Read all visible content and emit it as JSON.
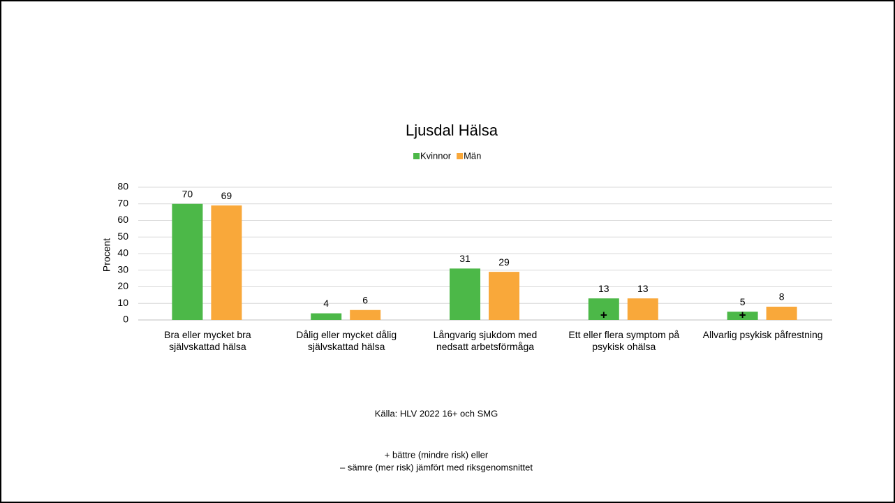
{
  "chart_data": {
    "type": "bar",
    "title": "Ljusdal Hälsa",
    "categories": [
      "Bra eller mycket bra självskattad hälsa",
      "Dålig eller mycket dålig självskattad hälsa",
      "Långvarig sjukdom med nedsatt arbetsförmåga",
      "Ett eller flera symptom på psykisk ohälsa",
      "Allvarlig psykisk påfrestning"
    ],
    "series": [
      {
        "name": "Kvinnor",
        "color": "#4cb848",
        "values": [
          70,
          4,
          31,
          13,
          5
        ],
        "markers": [
          null,
          null,
          null,
          "+",
          "+"
        ]
      },
      {
        "name": "Män",
        "color": "#f9a83a",
        "values": [
          69,
          6,
          29,
          13,
          8
        ]
      }
    ],
    "ylabel": "Procent",
    "ylim": [
      0,
      80
    ],
    "yticks": [
      0,
      10,
      20,
      30,
      40,
      50,
      60,
      70,
      80
    ],
    "grid": true,
    "legend": "top",
    "source": "Källa: HLV 2022 16+ och SMG",
    "notes": [
      "+ bättre (mindre risk) eller",
      "– sämre (mer risk) jämfört med riksgenomsnittet"
    ]
  }
}
